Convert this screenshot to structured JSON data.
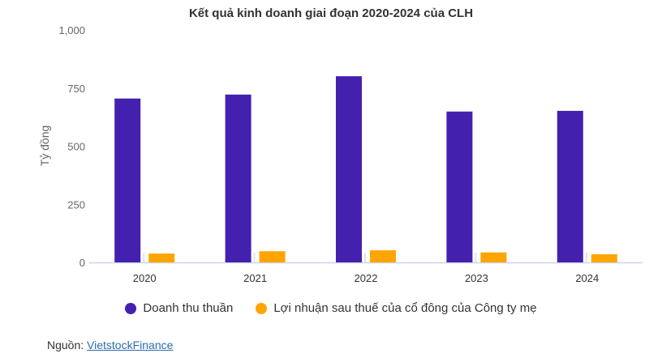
{
  "chart_data": {
    "type": "bar",
    "title": "Kết quả kinh doanh giai đoạn 2020-2024 của CLH",
    "ylabel": "Tỷ đồng",
    "xlabel": "",
    "ylim": [
      0,
      1000
    ],
    "yticks": [
      "0",
      "250",
      "500",
      "750",
      "1,000"
    ],
    "categories": [
      "2020",
      "2021",
      "2022",
      "2023",
      "2024"
    ],
    "series": [
      {
        "name": "Doanh thu thuần",
        "color": "#4321AE",
        "values": [
          705,
          722,
          801,
          649,
          652
        ]
      },
      {
        "name": "Lợi nhuận sau thuế của cổ đông của Công ty mẹ",
        "color": "#FFA500",
        "values": [
          38,
          48,
          52,
          43,
          35
        ]
      }
    ],
    "grid": false,
    "legend": "bottom"
  },
  "source": {
    "label": "Nguồn: ",
    "link": "VietstockFinance"
  }
}
